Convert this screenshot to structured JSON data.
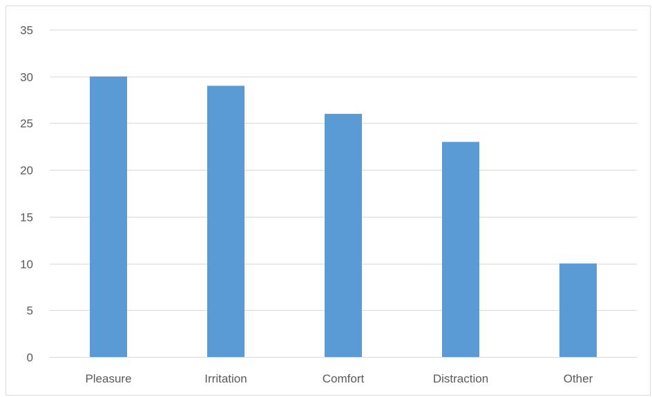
{
  "colors": {
    "bar": "#5b9bd5",
    "grid": "#d9d9d9",
    "text": "#595959",
    "background": "#ffffff"
  },
  "chart_data": {
    "type": "bar",
    "title": "",
    "xlabel": "",
    "ylabel": "",
    "categories": [
      "Pleasure",
      "Irritation",
      "Comfort",
      "Distraction",
      "Other"
    ],
    "values": [
      30,
      29,
      26,
      23,
      10
    ],
    "ylim": [
      0,
      35
    ],
    "yticks": [
      0,
      5,
      10,
      15,
      20,
      25,
      30,
      35
    ],
    "grid": true,
    "legend": "none"
  }
}
